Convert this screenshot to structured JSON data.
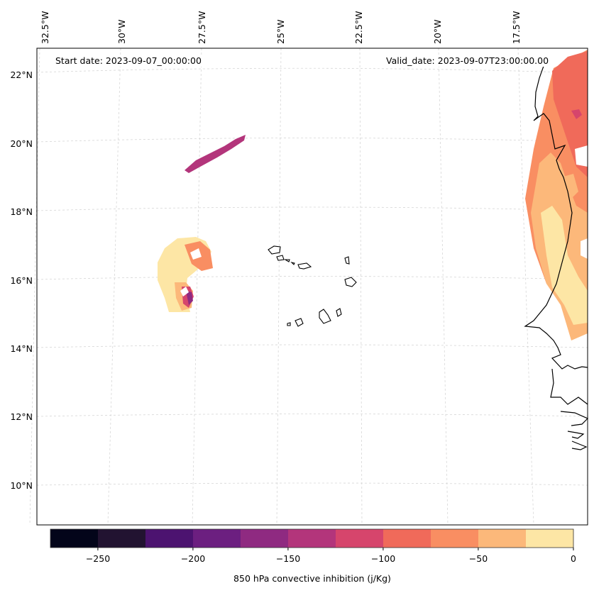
{
  "header": {
    "start_date": "Start date: 2023-09-07_00:00:00",
    "valid_date": "Valid_date: 2023-09-07T23:00:00.00"
  },
  "map": {
    "longitude_labels": [
      "32.5°W",
      "30°W",
      "27.5°W",
      "25°W",
      "22.5°W",
      "20°W",
      "17.5°W"
    ],
    "latitude_labels": [
      "22°N",
      "20°N",
      "18°N",
      "16°N",
      "14°N",
      "12°N",
      "10°N"
    ],
    "gridlines": true
  },
  "colorbar": {
    "title": "850 hPa convective inhibition (j/Kg)",
    "range": [
      -275,
      0
    ],
    "tick_labels": [
      "−250",
      "−200",
      "−150",
      "−100",
      "−50",
      "0"
    ],
    "colors": [
      "#03051a",
      "#221331",
      "#4c1370",
      "#6c1f80",
      "#8f2a81",
      "#b3357b",
      "#d6456c",
      "#f06a5a",
      "#f98e62",
      "#fcb87a",
      "#fde6a5"
    ]
  },
  "colors": {
    "contour_top": "#fde6a5",
    "contour_mid": "#f98e62",
    "contour_low": "#b3357b",
    "coastline": "#000000",
    "grid": "#d0d0d0"
  }
}
